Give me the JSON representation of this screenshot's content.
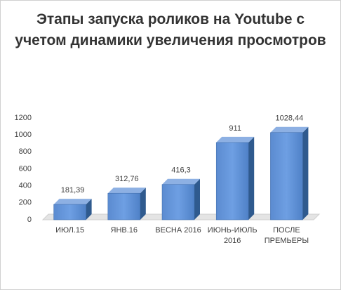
{
  "chart_data": {
    "type": "bar3d",
    "title": "Этапы запуска роликов на Youtube с учетом динамики увеличения просмотров",
    "categories": [
      "ИЮЛ.15",
      "ЯНВ.16",
      "ВЕСНА 2016",
      "ИЮНЬ-ИЮЛЬ 2016",
      "ПОСЛЕ ПРЕМЬЕРЫ"
    ],
    "values": [
      181.39,
      312.76,
      416.3,
      911,
      1028.44
    ],
    "value_labels": [
      "181,39",
      "312,76",
      "416,3",
      "911",
      "1028,44"
    ],
    "color": "#4f81bd",
    "ylim": [
      0,
      1200
    ],
    "yticks": [
      0,
      200,
      400,
      600,
      800,
      1000,
      1200
    ],
    "grid": false
  }
}
